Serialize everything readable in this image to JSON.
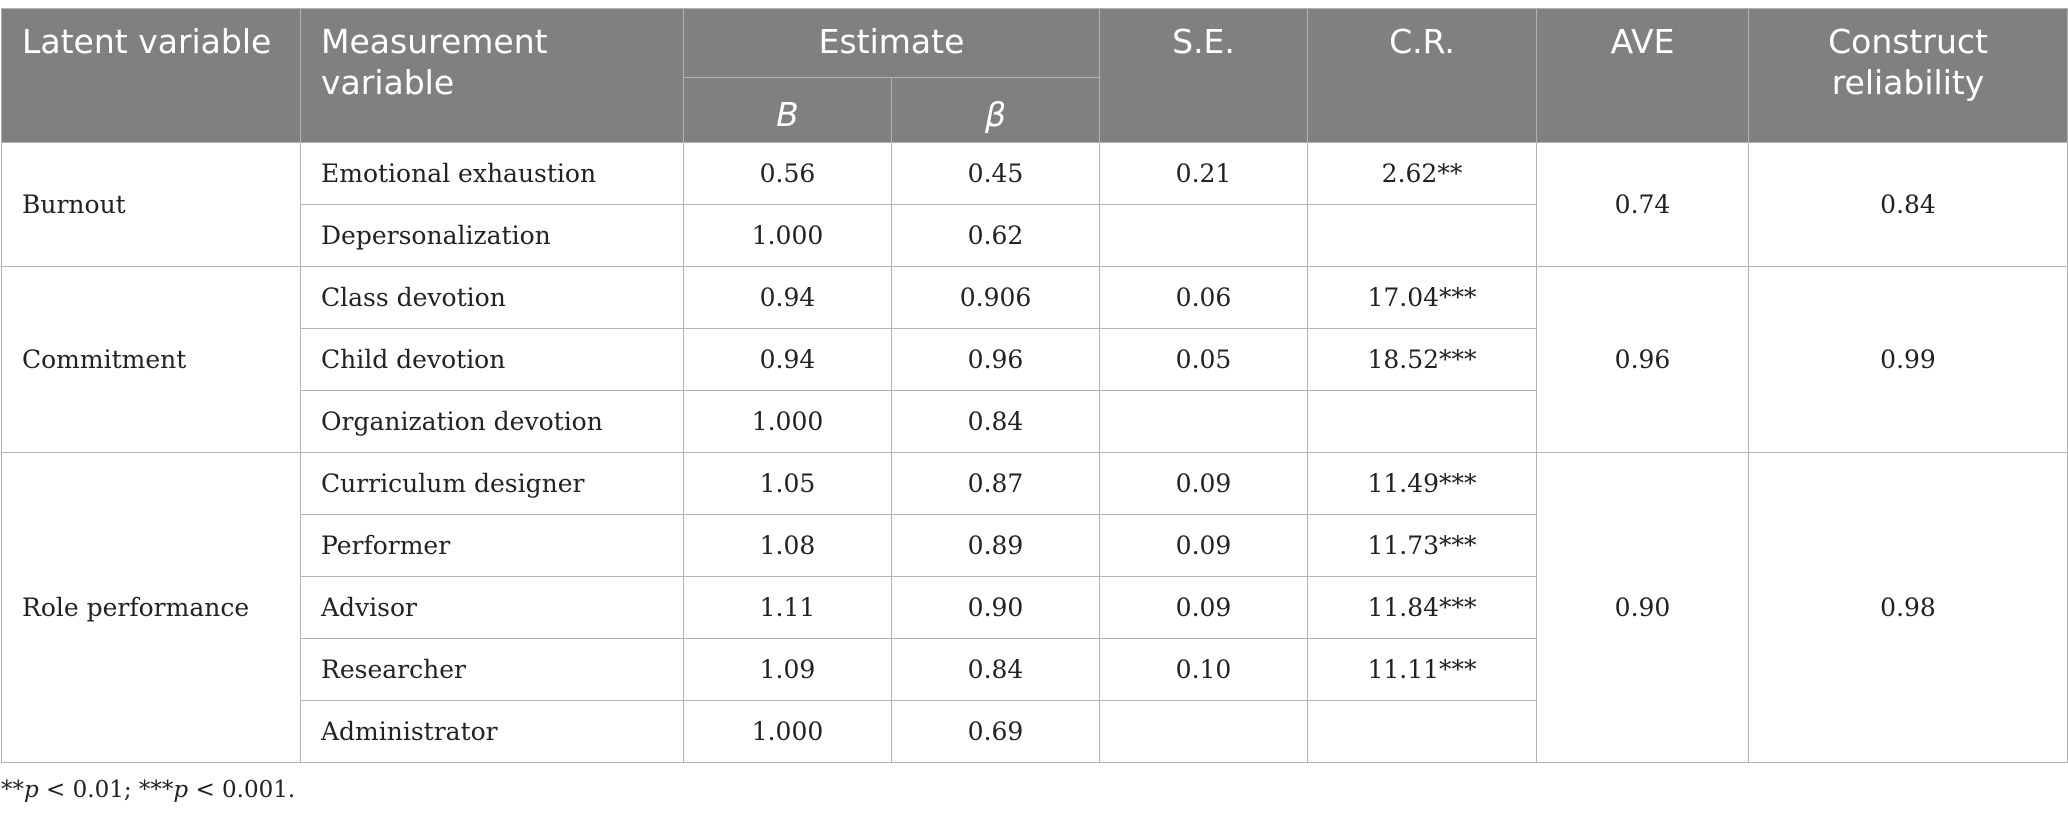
{
  "header": {
    "latent": "Latent variable",
    "measurement": "Measurement variable",
    "estimate": "Estimate",
    "b": "B",
    "beta": "β",
    "se": "S.E.",
    "cr": "C.R.",
    "ave": "AVE",
    "construct": "Construct reliability"
  },
  "groups": [
    {
      "latent": "Burnout",
      "ave": "0.74",
      "construct": "0.84",
      "rows": [
        {
          "measurement": "Emotional exhaustion",
          "b": "0.56",
          "beta": "0.45",
          "se": "0.21",
          "cr": "2.62**"
        },
        {
          "measurement": "Depersonalization",
          "b": "1.000",
          "beta": "0.62",
          "se": "",
          "cr": ""
        }
      ]
    },
    {
      "latent": "Commitment",
      "ave": "0.96",
      "construct": "0.99",
      "rows": [
        {
          "measurement": "Class devotion",
          "b": "0.94",
          "beta": "0.906",
          "se": "0.06",
          "cr": "17.04***"
        },
        {
          "measurement": "Child devotion",
          "b": "0.94",
          "beta": "0.96",
          "se": "0.05",
          "cr": "18.52***"
        },
        {
          "measurement": "Organization devotion",
          "b": "1.000",
          "beta": "0.84",
          "se": "",
          "cr": ""
        }
      ]
    },
    {
      "latent": "Role performance",
      "ave": "0.90",
      "construct": "0.98",
      "rows": [
        {
          "measurement": "Curriculum designer",
          "b": "1.05",
          "beta": "0.87",
          "se": "0.09",
          "cr": "11.49***"
        },
        {
          "measurement": "Performer",
          "b": "1.08",
          "beta": "0.89",
          "se": "0.09",
          "cr": "11.73***"
        },
        {
          "measurement": "Advisor",
          "b": "1.11",
          "beta": "0.90",
          "se": "0.09",
          "cr": "11.84***"
        },
        {
          "measurement": "Researcher",
          "b": "1.09",
          "beta": "0.84",
          "se": "0.10",
          "cr": "11.11***"
        },
        {
          "measurement": "Administrator",
          "b": "1.000",
          "beta": "0.69",
          "se": "",
          "cr": ""
        }
      ]
    }
  ],
  "footnote": {
    "prefix1": "**",
    "p1": "p",
    "text1": " < 0.01; ***",
    "p2": "p",
    "text2": " < 0.001."
  }
}
